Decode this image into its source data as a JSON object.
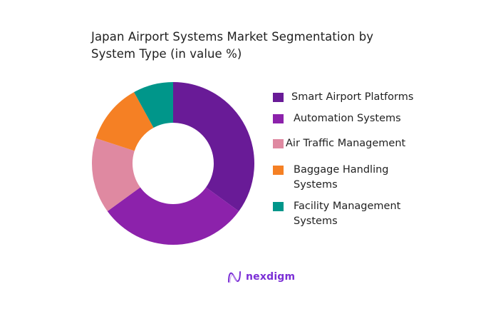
{
  "title": "Japan Airport Systems Market Segmentation by System Type (in value %)",
  "chart_data": {
    "type": "pie",
    "variant": "donut",
    "title": "Japan Airport Systems Market Segmentation by System Type (in value %)",
    "categories": [
      "Smart Airport Platforms",
      "Automation Systems",
      "Air Traffic Management",
      "Baggage Handling Systems",
      "Facility Management Systems"
    ],
    "values": [
      35,
      30,
      15,
      12,
      8
    ],
    "colors": [
      "#691b97",
      "#8c22ab",
      "#df89a1",
      "#f58024",
      "#00968a"
    ],
    "legend_position": "right",
    "data_labels": false
  },
  "legend": [
    {
      "label": "Smart Airport Platforms",
      "color": "#691b97"
    },
    {
      "label": "Automation Systems",
      "color": "#8c22ab"
    },
    {
      "label": "Air Traffic Management",
      "color": "#df89a1"
    },
    {
      "label": "Baggage Handling Systems",
      "color": "#f58024"
    },
    {
      "label": "Facility Management Systems",
      "color": "#00968a"
    }
  ],
  "brand": {
    "name": "nexdigm",
    "color": "#7b2fd6"
  }
}
